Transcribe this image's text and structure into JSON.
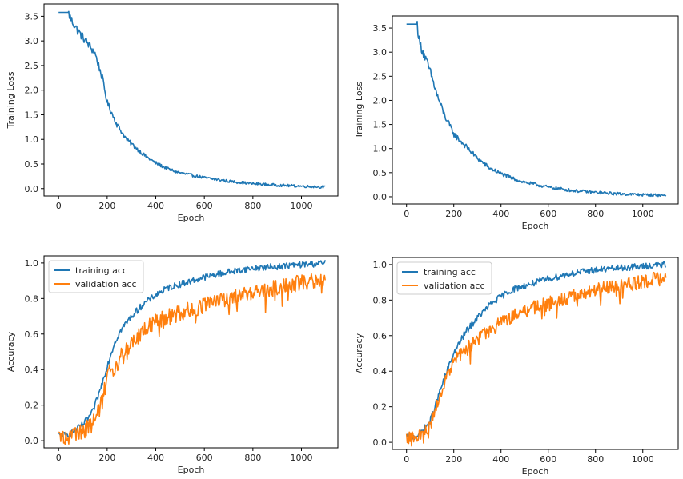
{
  "colors": {
    "training": "#1f77b4",
    "validation": "#ff7f0e"
  },
  "chart_data": [
    {
      "type": "line",
      "xlabel": "Epoch",
      "ylabel": "Training Loss",
      "xlim": [
        -60,
        1150
      ],
      "ylim": [
        -0.15,
        3.75
      ],
      "xticks": [
        0,
        200,
        400,
        600,
        800,
        1000
      ],
      "yticks": [
        0.0,
        0.5,
        1.0,
        1.5,
        2.0,
        2.5,
        3.0,
        3.5
      ],
      "grid": false,
      "series": [
        {
          "x": [
            0,
            40,
            50,
            80,
            120,
            150,
            180,
            200,
            240,
            280,
            320,
            360,
            400,
            450,
            500,
            600,
            700,
            800,
            900,
            1000,
            1100
          ],
          "values": [
            3.58,
            3.58,
            3.45,
            3.2,
            2.95,
            2.75,
            2.25,
            1.75,
            1.3,
            1.0,
            0.82,
            0.65,
            0.52,
            0.4,
            0.32,
            0.22,
            0.15,
            0.1,
            0.07,
            0.05,
            0.03
          ]
        }
      ]
    },
    {
      "type": "line",
      "xlabel": "Epoch",
      "ylabel": "Training Loss",
      "xlim": [
        -60,
        1150
      ],
      "ylim": [
        -0.15,
        3.75
      ],
      "xticks": [
        0,
        200,
        400,
        600,
        800,
        1000
      ],
      "yticks": [
        0.0,
        0.5,
        1.0,
        1.5,
        2.0,
        2.5,
        3.0,
        3.5
      ],
      "grid": false,
      "series": [
        {
          "x": [
            0,
            45,
            55,
            70,
            100,
            130,
            160,
            200,
            250,
            300,
            350,
            400,
            450,
            500,
            600,
            700,
            800,
            900,
            1000,
            1100
          ],
          "values": [
            3.58,
            3.58,
            3.2,
            3.0,
            2.6,
            2.1,
            1.7,
            1.3,
            1.05,
            0.8,
            0.6,
            0.48,
            0.38,
            0.3,
            0.2,
            0.13,
            0.09,
            0.06,
            0.04,
            0.03
          ]
        }
      ]
    },
    {
      "type": "line",
      "xlabel": "Epoch",
      "ylabel": "Accuracy",
      "xlim": [
        -60,
        1150
      ],
      "ylim": [
        -0.04,
        1.04
      ],
      "xticks": [
        0,
        200,
        400,
        600,
        800,
        1000
      ],
      "yticks": [
        0.0,
        0.2,
        0.4,
        0.6,
        0.8,
        1.0
      ],
      "grid": false,
      "legend": "upper-left",
      "series": [
        {
          "name": "training acc",
          "x": [
            0,
            30,
            60,
            100,
            140,
            170,
            200,
            230,
            260,
            300,
            350,
            400,
            450,
            500,
            600,
            700,
            800,
            900,
            1000,
            1100
          ],
          "values": [
            0.03,
            0.03,
            0.05,
            0.09,
            0.16,
            0.28,
            0.42,
            0.55,
            0.63,
            0.7,
            0.77,
            0.82,
            0.86,
            0.88,
            0.92,
            0.95,
            0.97,
            0.98,
            0.99,
            1.0
          ]
        },
        {
          "name": "validation acc",
          "x": [
            0,
            30,
            60,
            100,
            150,
            180,
            200,
            230,
            260,
            300,
            350,
            400,
            450,
            500,
            600,
            700,
            800,
            900,
            1000,
            1050,
            1100
          ],
          "values": [
            0.02,
            0.02,
            0.03,
            0.05,
            0.12,
            0.22,
            0.4,
            0.38,
            0.5,
            0.54,
            0.62,
            0.67,
            0.7,
            0.72,
            0.76,
            0.8,
            0.83,
            0.86,
            0.89,
            0.9,
            0.91
          ]
        }
      ]
    },
    {
      "type": "line",
      "xlabel": "Epoch",
      "ylabel": "Accuracy",
      "xlim": [
        -60,
        1150
      ],
      "ylim": [
        -0.04,
        1.04
      ],
      "xticks": [
        0,
        200,
        400,
        600,
        800,
        1000
      ],
      "yticks": [
        0.0,
        0.2,
        0.4,
        0.6,
        0.8,
        1.0
      ],
      "grid": false,
      "legend": "upper-left",
      "series": [
        {
          "name": "training acc",
          "x": [
            0,
            30,
            60,
            100,
            130,
            160,
            200,
            250,
            300,
            350,
            400,
            450,
            500,
            600,
            700,
            800,
            900,
            1000,
            1100
          ],
          "values": [
            0.03,
            0.03,
            0.05,
            0.12,
            0.24,
            0.36,
            0.5,
            0.62,
            0.7,
            0.77,
            0.82,
            0.86,
            0.88,
            0.92,
            0.95,
            0.97,
            0.98,
            0.99,
            1.0
          ]
        },
        {
          "name": "validation acc",
          "x": [
            0,
            40,
            70,
            100,
            130,
            160,
            200,
            250,
            300,
            350,
            400,
            450,
            500,
            600,
            700,
            800,
            900,
            1000,
            1050,
            1100
          ],
          "values": [
            0.02,
            0.02,
            0.04,
            0.1,
            0.22,
            0.34,
            0.45,
            0.52,
            0.58,
            0.63,
            0.67,
            0.71,
            0.74,
            0.78,
            0.82,
            0.86,
            0.88,
            0.9,
            0.92,
            0.92
          ]
        }
      ]
    }
  ]
}
